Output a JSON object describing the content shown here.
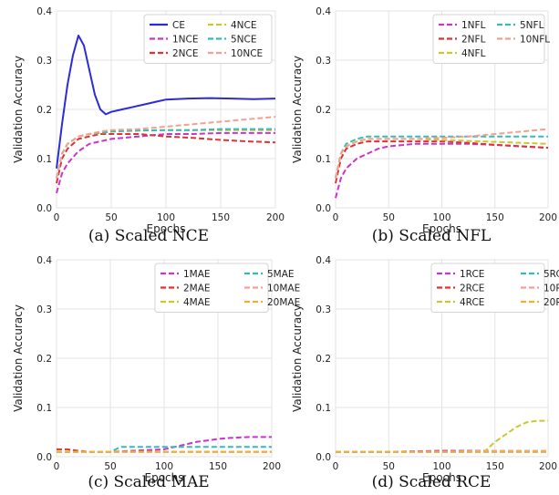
{
  "chart_data": [
    {
      "type": "line",
      "caption": "(a) Scaled NCE",
      "xlabel": "Epochs",
      "ylabel": "Validation Accuracy",
      "xlim": [
        0,
        200
      ],
      "ylim": [
        0,
        0.4
      ],
      "xticks": [
        0,
        50,
        100,
        150,
        200
      ],
      "yticks": [
        0.0,
        0.1,
        0.2,
        0.3,
        0.4
      ],
      "grid": true,
      "legend": "top-right",
      "legend_columns": 2,
      "series": [
        {
          "name": "CE",
          "color": "#2b2bd9",
          "dash": "solid",
          "x": [
            0,
            5,
            10,
            15,
            20,
            25,
            30,
            35,
            40,
            45,
            50,
            60,
            70,
            80,
            90,
            100,
            120,
            140,
            160,
            180,
            200
          ],
          "y": [
            0.08,
            0.17,
            0.25,
            0.31,
            0.35,
            0.33,
            0.28,
            0.23,
            0.2,
            0.19,
            0.195,
            0.2,
            0.205,
            0.21,
            0.215,
            0.22,
            0.222,
            0.223,
            0.222,
            0.221,
            0.222
          ]
        },
        {
          "name": "1NCE",
          "color": "#cc33cc",
          "dash": "dashed",
          "x": [
            0,
            5,
            10,
            20,
            30,
            40,
            50,
            75,
            100,
            125,
            150,
            175,
            200
          ],
          "y": [
            0.03,
            0.07,
            0.09,
            0.115,
            0.13,
            0.135,
            0.14,
            0.145,
            0.15,
            0.15,
            0.152,
            0.152,
            0.152
          ]
        },
        {
          "name": "2NCE",
          "color": "#dd3333",
          "dash": "dashed",
          "x": [
            0,
            5,
            10,
            20,
            30,
            40,
            50,
            75,
            100,
            125,
            150,
            175,
            200
          ],
          "y": [
            0.05,
            0.1,
            0.12,
            0.14,
            0.145,
            0.15,
            0.15,
            0.15,
            0.145,
            0.142,
            0.138,
            0.135,
            0.133
          ]
        },
        {
          "name": "4NCE",
          "color": "#c8c833",
          "dash": "dashed",
          "x": [
            0,
            5,
            10,
            20,
            30,
            40,
            50,
            75,
            100,
            125,
            150,
            175,
            200
          ],
          "y": [
            0.06,
            0.11,
            0.13,
            0.145,
            0.15,
            0.152,
            0.155,
            0.157,
            0.158,
            0.158,
            0.158,
            0.158,
            0.158
          ]
        },
        {
          "name": "5NCE",
          "color": "#33bbbb",
          "dash": "dashed",
          "x": [
            0,
            5,
            10,
            20,
            30,
            40,
            50,
            75,
            100,
            125,
            150,
            175,
            200
          ],
          "y": [
            0.06,
            0.11,
            0.13,
            0.145,
            0.15,
            0.153,
            0.155,
            0.157,
            0.158,
            0.158,
            0.16,
            0.16,
            0.16
          ]
        },
        {
          "name": "10NCE",
          "color": "#f4a090",
          "dash": "dashed",
          "x": [
            0,
            5,
            10,
            20,
            30,
            40,
            50,
            75,
            100,
            125,
            150,
            175,
            200
          ],
          "y": [
            0.06,
            0.11,
            0.13,
            0.145,
            0.15,
            0.155,
            0.158,
            0.16,
            0.165,
            0.17,
            0.175,
            0.18,
            0.185
          ]
        }
      ]
    },
    {
      "type": "line",
      "caption": "(b) Scaled NFL",
      "xlabel": "Epochs",
      "ylabel": "Validation Accuracy",
      "xlim": [
        0,
        200
      ],
      "ylim": [
        0,
        0.4
      ],
      "xticks": [
        0,
        50,
        100,
        150,
        200
      ],
      "yticks": [
        0.0,
        0.1,
        0.2,
        0.3,
        0.4
      ],
      "grid": true,
      "legend": "top-right",
      "legend_columns": 2,
      "series": [
        {
          "name": "1NFL",
          "color": "#cc33cc",
          "dash": "dashed",
          "x": [
            0,
            5,
            10,
            20,
            30,
            40,
            50,
            75,
            100,
            125,
            150,
            175,
            200
          ],
          "y": [
            0.02,
            0.06,
            0.08,
            0.1,
            0.11,
            0.12,
            0.125,
            0.13,
            0.13,
            0.13,
            0.128,
            0.125,
            0.122
          ]
        },
        {
          "name": "2NFL",
          "color": "#dd3333",
          "dash": "dashed",
          "x": [
            0,
            5,
            10,
            20,
            30,
            40,
            50,
            75,
            100,
            125,
            150,
            175,
            200
          ],
          "y": [
            0.05,
            0.1,
            0.12,
            0.13,
            0.135,
            0.135,
            0.135,
            0.135,
            0.135,
            0.132,
            0.128,
            0.125,
            0.122
          ]
        },
        {
          "name": "4NFL",
          "color": "#c8c833",
          "dash": "dashed",
          "x": [
            0,
            5,
            10,
            20,
            30,
            40,
            50,
            75,
            100,
            125,
            150,
            175,
            200
          ],
          "y": [
            0.06,
            0.11,
            0.125,
            0.135,
            0.14,
            0.14,
            0.14,
            0.14,
            0.138,
            0.136,
            0.134,
            0.132,
            0.13
          ]
        },
        {
          "name": "5NFL",
          "color": "#33bbbb",
          "dash": "dashed",
          "x": [
            0,
            5,
            10,
            20,
            30,
            40,
            50,
            75,
            100,
            125,
            150,
            175,
            200
          ],
          "y": [
            0.06,
            0.11,
            0.13,
            0.14,
            0.145,
            0.145,
            0.145,
            0.145,
            0.145,
            0.145,
            0.145,
            0.145,
            0.145
          ]
        },
        {
          "name": "10NFL",
          "color": "#f4a090",
          "dash": "dashed",
          "x": [
            0,
            5,
            10,
            20,
            30,
            40,
            50,
            75,
            100,
            125,
            150,
            175,
            200
          ],
          "y": [
            0.06,
            0.11,
            0.125,
            0.135,
            0.14,
            0.14,
            0.14,
            0.14,
            0.142,
            0.145,
            0.15,
            0.155,
            0.16
          ]
        }
      ]
    },
    {
      "type": "line",
      "caption": "(c) Scaled MAE",
      "xlabel": "Epochs",
      "ylabel": "Validation Accuracy",
      "xlim": [
        0,
        200
      ],
      "ylim": [
        0,
        0.4
      ],
      "xticks": [
        0,
        50,
        100,
        150,
        200
      ],
      "yticks": [
        0.0,
        0.1,
        0.2,
        0.3,
        0.4
      ],
      "grid": true,
      "legend": "top-right",
      "legend_columns": 2,
      "series": [
        {
          "name": "1MAE",
          "color": "#cc33cc",
          "dash": "dashed",
          "x": [
            0,
            50,
            100,
            110,
            120,
            130,
            140,
            150,
            160,
            170,
            180,
            190,
            200
          ],
          "y": [
            0.01,
            0.01,
            0.015,
            0.02,
            0.025,
            0.03,
            0.033,
            0.036,
            0.038,
            0.039,
            0.04,
            0.04,
            0.04
          ]
        },
        {
          "name": "2MAE",
          "color": "#dd3333",
          "dash": "dashed",
          "x": [
            0,
            10,
            20,
            30,
            50,
            100,
            150,
            200
          ],
          "y": [
            0.015,
            0.015,
            0.012,
            0.01,
            0.01,
            0.01,
            0.01,
            0.01
          ]
        },
        {
          "name": "4MAE",
          "color": "#c8c833",
          "dash": "dashed",
          "x": [
            0,
            50,
            100,
            150,
            200
          ],
          "y": [
            0.01,
            0.01,
            0.01,
            0.01,
            0.01
          ]
        },
        {
          "name": "5MAE",
          "color": "#33bbbb",
          "dash": "dashed",
          "x": [
            0,
            50,
            55,
            60,
            70,
            80,
            100,
            150,
            200
          ],
          "y": [
            0.01,
            0.01,
            0.015,
            0.02,
            0.02,
            0.02,
            0.02,
            0.02,
            0.02
          ]
        },
        {
          "name": "10MAE",
          "color": "#f4a090",
          "dash": "dashed",
          "x": [
            0,
            50,
            100,
            150,
            200
          ],
          "y": [
            0.01,
            0.01,
            0.01,
            0.01,
            0.01
          ]
        },
        {
          "name": "20MAE",
          "color": "#f0b030",
          "dash": "dashed",
          "x": [
            0,
            50,
            100,
            150,
            200
          ],
          "y": [
            0.01,
            0.01,
            0.01,
            0.01,
            0.01
          ]
        }
      ]
    },
    {
      "type": "line",
      "caption": "(d) Scaled RCE",
      "xlabel": "Epochs",
      "ylabel": "Validation Accuracy",
      "xlim": [
        0,
        200
      ],
      "ylim": [
        0,
        0.4
      ],
      "xticks": [
        0,
        50,
        100,
        150,
        200
      ],
      "yticks": [
        0.0,
        0.1,
        0.2,
        0.3,
        0.4
      ],
      "grid": true,
      "legend": "top-right",
      "legend_columns": 2,
      "series": [
        {
          "name": "1RCE",
          "color": "#cc33cc",
          "dash": "dashed",
          "x": [
            0,
            50,
            100,
            150,
            200
          ],
          "y": [
            0.01,
            0.01,
            0.012,
            0.012,
            0.012
          ]
        },
        {
          "name": "2RCE",
          "color": "#dd3333",
          "dash": "dashed",
          "x": [
            0,
            50,
            100,
            150,
            200
          ],
          "y": [
            0.01,
            0.01,
            0.01,
            0.01,
            0.01
          ]
        },
        {
          "name": "4RCE",
          "color": "#c8c833",
          "dash": "dashed",
          "x": [
            0,
            50,
            100,
            140,
            145,
            150,
            160,
            170,
            180,
            190,
            200
          ],
          "y": [
            0.01,
            0.01,
            0.01,
            0.01,
            0.02,
            0.03,
            0.045,
            0.06,
            0.07,
            0.073,
            0.073
          ]
        },
        {
          "name": "5RCE",
          "color": "#33bbbb",
          "dash": "dashed",
          "x": [
            0,
            50,
            100,
            150,
            200
          ],
          "y": [
            0.01,
            0.01,
            0.01,
            0.01,
            0.01
          ]
        },
        {
          "name": "10RCE",
          "color": "#f4a090",
          "dash": "dashed",
          "x": [
            0,
            50,
            100,
            150,
            200
          ],
          "y": [
            0.01,
            0.01,
            0.01,
            0.012,
            0.012
          ]
        },
        {
          "name": "20RCE",
          "color": "#f0b030",
          "dash": "dashed",
          "x": [
            0,
            50,
            100,
            150,
            200
          ],
          "y": [
            0.01,
            0.01,
            0.01,
            0.01,
            0.01
          ]
        }
      ]
    }
  ]
}
